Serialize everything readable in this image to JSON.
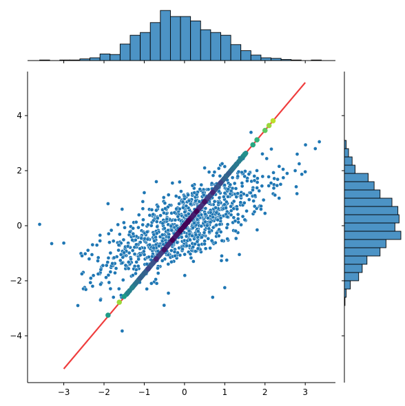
{
  "chart_data": [
    {
      "type": "scatter",
      "panel": "joint",
      "xlim": [
        -3.9,
        3.75
      ],
      "ylim": [
        -5.7,
        5.6
      ],
      "x_ticks": [
        -3,
        -2,
        -1,
        0,
        1,
        2,
        3
      ],
      "x_tick_labels": [
        "−3",
        "−2",
        "−1",
        "0",
        "1",
        "2",
        "3"
      ],
      "y_ticks": [
        -4,
        -2,
        0,
        2,
        4
      ],
      "y_tick_labels": [
        "−4",
        "−2",
        "0",
        "2",
        "4"
      ],
      "grid": false,
      "series": [
        {
          "kind": "scatter",
          "color": "#1f77b4",
          "edge_color": "#ffffff",
          "n_points": 1000,
          "x_mean": 0.0,
          "x_std": 1.0,
          "y_mean": 0.0,
          "y_std": 0.95,
          "correlation": 0.72,
          "points": [
            [
              -3.6,
              0.05
            ],
            [
              -3.3,
              -0.65
            ],
            [
              -3.0,
              -0.63
            ],
            [
              -2.65,
              -2.9
            ],
            [
              -2.55,
              -1.75
            ],
            [
              -1.9,
              0.8
            ],
            [
              -1.55,
              0.6
            ],
            [
              -1.7,
              -1.55
            ],
            [
              1.0,
              -2.25
            ],
            [
              1.05,
              -1.25
            ],
            [
              1.15,
              0.7
            ],
            [
              1.9,
              0.6
            ],
            [
              2.0,
              0.45
            ],
            [
              2.55,
              1.9
            ],
            [
              2.75,
              2.0
            ],
            [
              2.8,
              2.6
            ],
            [
              2.85,
              2.25
            ],
            [
              3.25,
              2.8
            ],
            [
              3.35,
              3.05
            ],
            [
              1.0,
              2.15
            ],
            [
              0.5,
              2.1
            ],
            [
              -0.3,
              1.55
            ],
            [
              -0.7,
              1.6
            ],
            [
              -1.0,
              1.2
            ],
            [
              0.7,
              -2.6
            ],
            [
              -0.4,
              -2.45
            ],
            [
              -1.2,
              -1.6
            ],
            [
              2.35,
              1.0
            ],
            [
              2.45,
              2.05
            ],
            [
              2.15,
              1.55
            ],
            [
              -2.3,
              -1.05
            ],
            [
              -2.1,
              -0.55
            ]
          ]
        },
        {
          "kind": "line",
          "color": "#ee3333",
          "x": [
            -3,
            3
          ],
          "y": [
            -5.2,
            5.2
          ]
        },
        {
          "kind": "colored_scatter",
          "colormap": "viridis",
          "note_range": "x from -1.9 to 2.2 along y = 1.73x",
          "x": [
            -1.9,
            -1.62,
            -1.5,
            -1.3,
            -1.1,
            -0.9,
            -0.7,
            -0.5,
            -0.3,
            -0.1,
            0.1,
            0.3,
            0.5,
            0.7,
            0.9,
            1.1,
            1.3,
            1.5,
            1.7,
            1.8,
            2.0,
            2.1,
            2.2
          ],
          "y": [
            -3.25,
            -2.78,
            -2.57,
            -2.25,
            -1.9,
            -1.56,
            -1.21,
            -0.87,
            -0.52,
            -0.17,
            0.17,
            0.52,
            0.87,
            1.21,
            1.56,
            1.9,
            2.25,
            2.6,
            2.94,
            3.12,
            3.46,
            3.64,
            3.81
          ],
          "c": [
            0.55,
            0.85,
            0.55,
            0.45,
            0.3,
            0.2,
            0.1,
            0.05,
            0.0,
            0.0,
            0.0,
            0.0,
            0.05,
            0.1,
            0.2,
            0.3,
            0.4,
            0.5,
            0.6,
            0.65,
            0.75,
            0.85,
            0.9
          ]
        }
      ]
    },
    {
      "type": "bar",
      "panel": "marginal-x",
      "orientation": "vertical",
      "bin_edges": [
        -3.6,
        -3.35,
        -3.1,
        -2.85,
        -2.6,
        -2.35,
        -2.1,
        -1.85,
        -1.6,
        -1.35,
        -1.1,
        -0.85,
        -0.6,
        -0.35,
        -0.1,
        0.15,
        0.4,
        0.65,
        0.9,
        1.15,
        1.4,
        1.65,
        1.9,
        2.15,
        2.4,
        2.65,
        2.9,
        3.15,
        3.4
      ],
      "counts": [
        1,
        0,
        1,
        1,
        3,
        5,
        12,
        11,
        30,
        46,
        51,
        69,
        91,
        80,
        80,
        72,
        56,
        51,
        46,
        29,
        18,
        10,
        5,
        4,
        2,
        1,
        0,
        1
      ],
      "color": "#4c93c5",
      "edge_color": "#000000",
      "ylim": [
        0,
        95
      ]
    },
    {
      "type": "bar",
      "panel": "marginal-y",
      "orientation": "horizontal",
      "bin_edges": [
        -2.9,
        -2.6,
        -2.3,
        -2.0,
        -1.7,
        -1.4,
        -1.1,
        -0.8,
        -0.5,
        -0.2,
        0.1,
        0.4,
        0.7,
        1.0,
        1.3,
        1.6,
        1.9,
        2.2,
        2.5,
        2.8,
        3.1
      ],
      "counts": [
        1,
        3,
        10,
        24,
        30,
        38,
        60,
        70,
        95,
        85,
        92,
        90,
        80,
        60,
        50,
        40,
        18,
        13,
        7,
        3
      ],
      "color": "#4c93c5",
      "edge_color": "#000000",
      "xlim": [
        0,
        95
      ]
    }
  ]
}
